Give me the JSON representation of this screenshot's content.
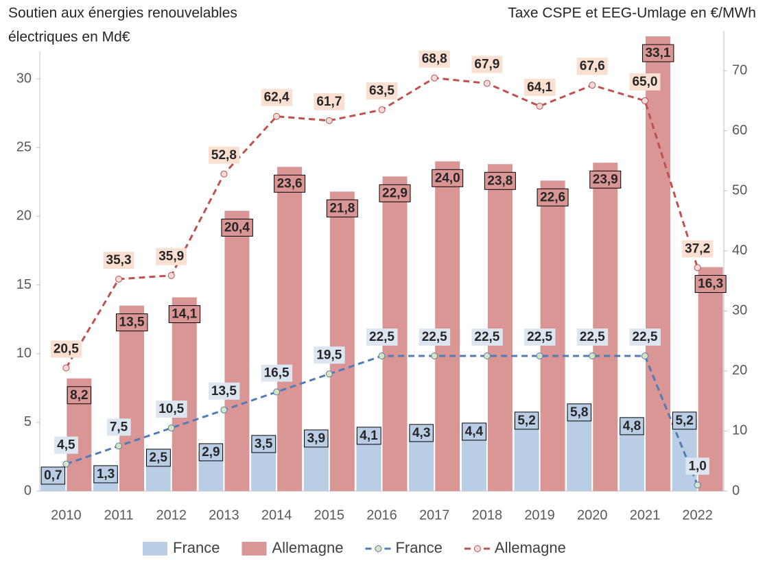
{
  "chart_data": {
    "type": "bar",
    "y_label": [
      "Soutien aux énergies renouvelables",
      "électriques en Md€"
    ],
    "y2_label": "Taxe CSPE et EEG-Umlage en €/MWh",
    "categories": [
      "2010",
      "2011",
      "2012",
      "2013",
      "2014",
      "2015",
      "2016",
      "2017",
      "2018",
      "2019",
      "2020",
      "2021",
      "2022"
    ],
    "ylim": [
      0,
      33
    ],
    "yticks": [
      0,
      5,
      10,
      15,
      20,
      25,
      30
    ],
    "y2lim": [
      0,
      75.5
    ],
    "y2ticks": [
      0,
      10,
      20,
      30,
      40,
      50,
      60,
      70
    ],
    "series": [
      {
        "name": "France",
        "type": "bar",
        "color": "#b9cde5",
        "values": [
          0.7,
          1.3,
          2.5,
          2.9,
          3.5,
          3.9,
          4.1,
          4.3,
          4.4,
          5.2,
          5.8,
          4.8,
          5.2
        ],
        "value_labels": [
          "0,7",
          "1,3",
          "2,5",
          "2,9",
          "3,5",
          "3,9",
          "4,1",
          "4,3",
          "4,4",
          "5,2",
          "5,8",
          "4,8",
          "5,2"
        ]
      },
      {
        "name": "Allemagne",
        "type": "bar",
        "color": "#d99694",
        "values": [
          8.2,
          13.5,
          14.1,
          20.4,
          23.6,
          21.8,
          22.9,
          24.0,
          23.8,
          22.6,
          23.9,
          33.1,
          16.3
        ],
        "value_labels": [
          "8,2",
          "13,5",
          "14,1",
          "20,4",
          "23,6",
          "21,8",
          "22,9",
          "24,0",
          "23,8",
          "22,6",
          "23,9",
          "33,1",
          "16,3"
        ]
      },
      {
        "name": "France",
        "type": "line",
        "axis": "y2",
        "color": "#4f7cb5",
        "label_bg": "#dce6f1",
        "marker_fill": "#d7e4bd",
        "values": [
          4.5,
          7.5,
          10.5,
          13.5,
          16.5,
          19.5,
          22.5,
          22.5,
          22.5,
          22.5,
          22.5,
          22.5,
          1.0
        ],
        "value_labels": [
          "4,5",
          "7,5",
          "10,5",
          "13,5",
          "16,5",
          "19,5",
          "22,5",
          "22,5",
          "22,5",
          "22,5",
          "22,5",
          "22,5",
          "1,0"
        ]
      },
      {
        "name": "Allemagne",
        "type": "line",
        "axis": "y2",
        "color": "#c0504d",
        "label_bg": "#fbe0d2",
        "marker_fill": "#f2dcdb",
        "values": [
          20.5,
          35.3,
          35.9,
          52.8,
          62.4,
          61.7,
          63.5,
          68.8,
          67.9,
          64.1,
          67.6,
          65.0,
          37.2
        ],
        "value_labels": [
          "20,5",
          "35,3",
          "35,9",
          "52,8",
          "62,4",
          "61,7",
          "63,5",
          "68,8",
          "67,9",
          "64,1",
          "67,6",
          "65,0",
          "37,2"
        ]
      }
    ]
  }
}
